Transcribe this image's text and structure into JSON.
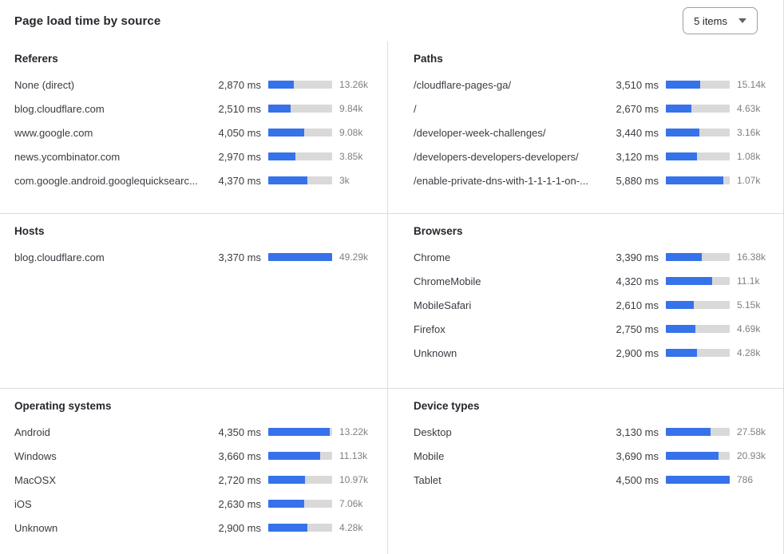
{
  "header": {
    "title": "Page load time by source",
    "dropdown": {
      "value": "5 items",
      "icon": "caret-down-icon"
    }
  },
  "colors": {
    "bar-fill": "#3672e9",
    "bar-track": "#d9d9d9",
    "divider": "#dcdcdc",
    "text-dark": "#33373c",
    "text-muted": "#7d8086"
  },
  "chart_data": [
    {
      "type": "bar",
      "orientation": "horizontal",
      "title": "Referers",
      "unit": "ms",
      "position": "row1-left",
      "categories": [
        "None (direct)",
        "blog.cloudflare.com",
        "www.google.com",
        "news.ycombinator.com",
        "com.google.android.googlequicksearc..."
      ],
      "values": [
        2870,
        2510,
        4050,
        2970,
        4370
      ],
      "ms_labels": [
        "2,870 ms",
        "2,510 ms",
        "4,050 ms",
        "2,970 ms",
        "4,370 ms"
      ],
      "counts": [
        "13.26k",
        "9.84k",
        "9.08k",
        "3.85k",
        "3k"
      ],
      "bar_pct": [
        40.5,
        35.5,
        56.5,
        42,
        61.5
      ]
    },
    {
      "type": "bar",
      "orientation": "horizontal",
      "title": "Paths",
      "unit": "ms",
      "position": "row1-right",
      "categories": [
        "/cloudflare-pages-ga/",
        "/",
        "/developer-week-challenges/",
        "/developers-developers-developers/",
        "/enable-private-dns-with-1-1-1-1-on-..."
      ],
      "values": [
        3510,
        2670,
        3440,
        3120,
        5880
      ],
      "ms_labels": [
        "3,510 ms",
        "2,670 ms",
        "3,440 ms",
        "3,120 ms",
        "5,880 ms"
      ],
      "counts": [
        "15.14k",
        "4.63k",
        "3.16k",
        "1.08k",
        "1.07k"
      ],
      "bar_pct": [
        54,
        40.5,
        53,
        48.5,
        90
      ]
    },
    {
      "type": "bar",
      "orientation": "horizontal",
      "title": "Hosts",
      "unit": "ms",
      "position": "row2-left",
      "categories": [
        "blog.cloudflare.com"
      ],
      "values": [
        3370
      ],
      "ms_labels": [
        "3,370 ms"
      ],
      "counts": [
        "49.29k"
      ],
      "bar_pct": [
        100
      ]
    },
    {
      "type": "bar",
      "orientation": "horizontal",
      "title": "Browsers",
      "unit": "ms",
      "position": "row2-right",
      "categories": [
        "Chrome",
        "ChromeMobile",
        "MobileSafari",
        "Firefox",
        "Unknown"
      ],
      "values": [
        3390,
        4320,
        2610,
        2750,
        2900
      ],
      "ms_labels": [
        "3,390 ms",
        "4,320 ms",
        "2,610 ms",
        "2,750 ms",
        "2,900 ms"
      ],
      "counts": [
        "16.38k",
        "11.1k",
        "5.15k",
        "4.69k",
        "4.28k"
      ],
      "bar_pct": [
        56.5,
        72,
        43.5,
        46,
        48.5
      ]
    },
    {
      "type": "bar",
      "orientation": "horizontal",
      "title": "Operating systems",
      "unit": "ms",
      "position": "row3-left",
      "categories": [
        "Android",
        "Windows",
        "MacOSX",
        "iOS",
        "Unknown"
      ],
      "values": [
        4350,
        3660,
        2720,
        2630,
        2900
      ],
      "ms_labels": [
        "4,350 ms",
        "3,660 ms",
        "2,720 ms",
        "2,630 ms",
        "2,900 ms"
      ],
      "counts": [
        "13.22k",
        "11.13k",
        "10.97k",
        "7.06k",
        "4.28k"
      ],
      "bar_pct": [
        96.5,
        81.5,
        58,
        56,
        61.5
      ]
    },
    {
      "type": "bar",
      "orientation": "horizontal",
      "title": "Device types",
      "unit": "ms",
      "position": "row3-right",
      "categories": [
        "Desktop",
        "Mobile",
        "Tablet"
      ],
      "values": [
        3130,
        3690,
        4500
      ],
      "ms_labels": [
        "3,130 ms",
        "3,690 ms",
        "4,500 ms"
      ],
      "counts": [
        "27.58k",
        "20.93k",
        "786"
      ],
      "bar_pct": [
        70,
        82.5,
        100
      ]
    }
  ]
}
